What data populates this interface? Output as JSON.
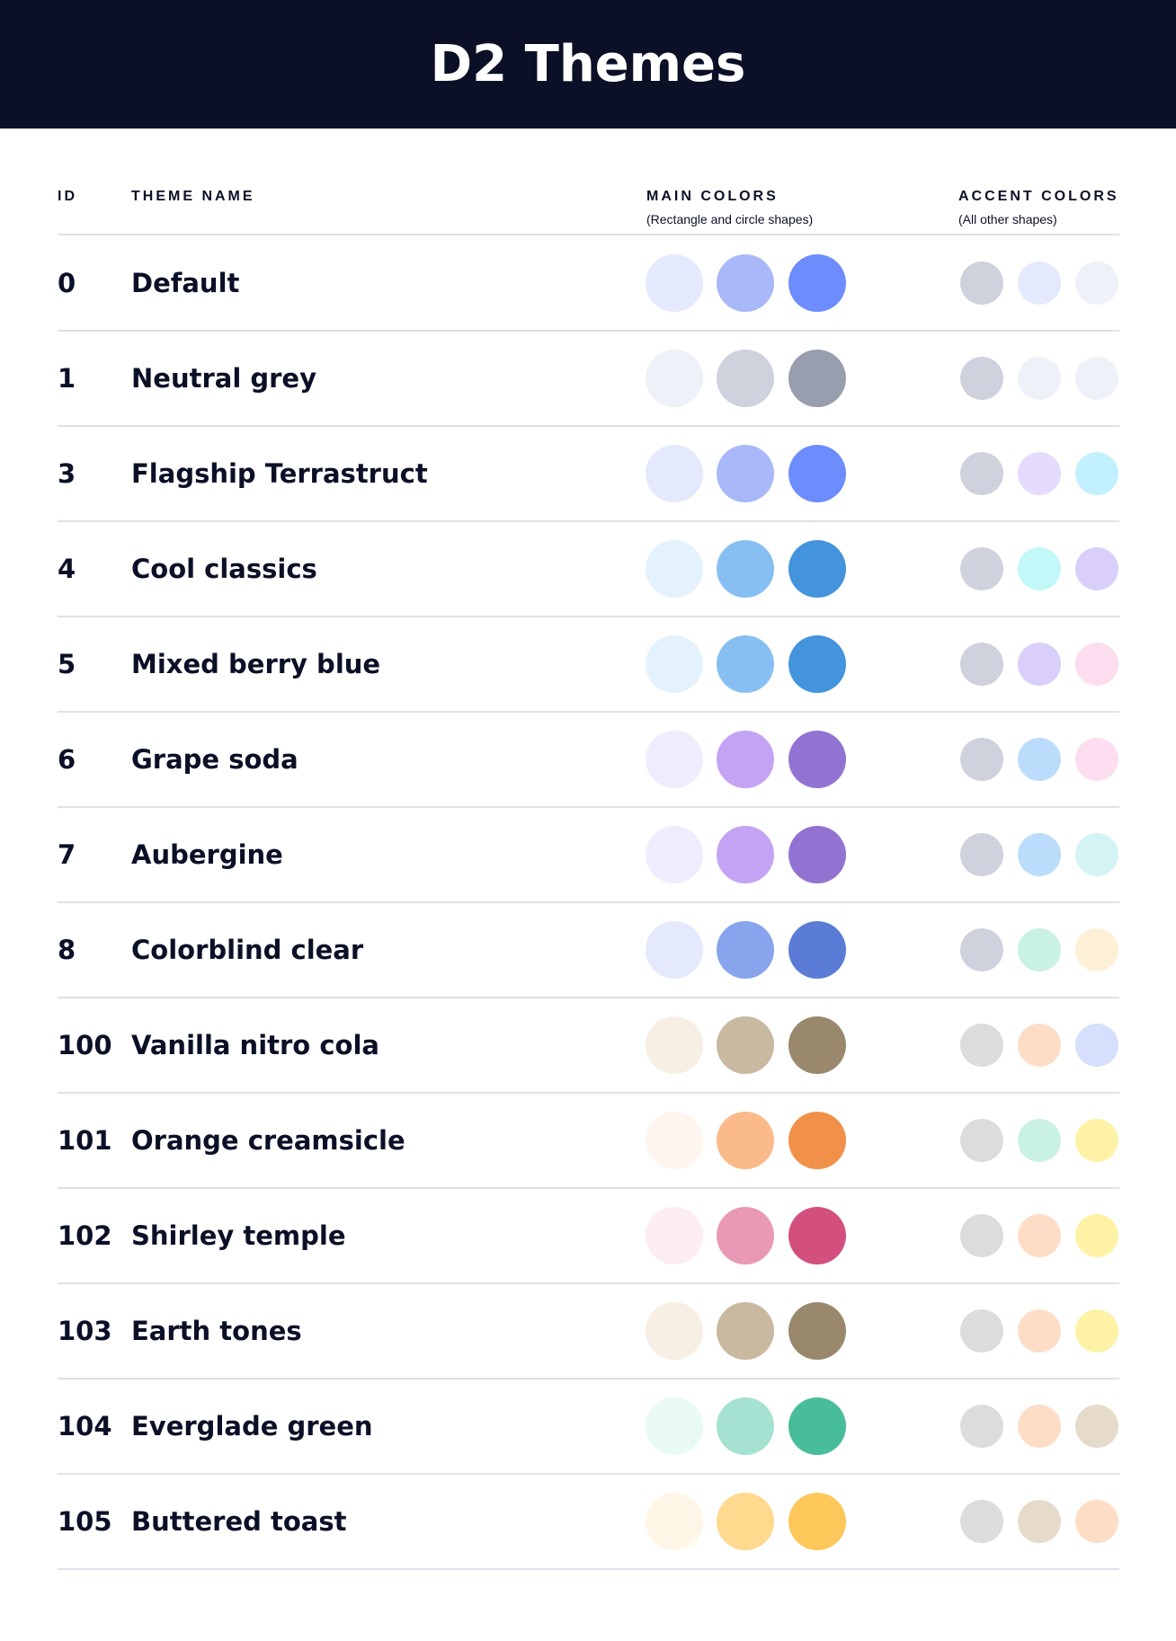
{
  "title": "D2 Themes",
  "columns": {
    "id": "ID",
    "name": "THEME NAME",
    "main": "MAIN COLORS",
    "main_sub": "(Rectangle and circle shapes)",
    "accent": "ACCENT COLORS",
    "accent_sub": "(All other shapes)"
  },
  "themes": [
    {
      "id": "0",
      "name": "Default",
      "main": [
        "#E5E9FD",
        "#A9B8F8",
        "#6D8CFD"
      ],
      "accent": [
        "#CFD2DD",
        "#E5E9FD",
        "#EEF1F8"
      ]
    },
    {
      "id": "1",
      "name": "Neutral grey",
      "main": [
        "#EEF1F8",
        "#CFD2DD",
        "#989EAD"
      ],
      "accent": [
        "#CFD2DD",
        "#EEF1F8",
        "#EEF1F8"
      ]
    },
    {
      "id": "3",
      "name": "Flagship Terrastruct",
      "main": [
        "#E5E9FD",
        "#A9B8F8",
        "#6D8CFD"
      ],
      "accent": [
        "#CFD2DD",
        "#E5DBFE",
        "#C2F0FE"
      ]
    },
    {
      "id": "4",
      "name": "Cool classics",
      "main": [
        "#E3F2FD",
        "#88BFF3",
        "#4393DD"
      ],
      "accent": [
        "#CFD2DD",
        "#C2F8F8",
        "#D9CFFA"
      ]
    },
    {
      "id": "5",
      "name": "Mixed berry blue",
      "main": [
        "#E3F2FD",
        "#88BFF3",
        "#4393DD"
      ],
      "accent": [
        "#CFD2DD",
        "#D9CFFA",
        "#FDDDF0"
      ]
    },
    {
      "id": "6",
      "name": "Grape soda",
      "main": [
        "#F0ECFE",
        "#C4A3F4",
        "#9373D1"
      ],
      "accent": [
        "#CFD2DD",
        "#BBDCFB",
        "#FDDDF0"
      ]
    },
    {
      "id": "7",
      "name": "Aubergine",
      "main": [
        "#F0ECFE",
        "#C4A3F4",
        "#9373D1"
      ],
      "accent": [
        "#CFD2DD",
        "#BBDCFB",
        "#D4F4F3"
      ]
    },
    {
      "id": "8",
      "name": "Colorblind clear",
      "main": [
        "#E5E9FD",
        "#87A4EC",
        "#5A7CD6"
      ],
      "accent": [
        "#CFD2DD",
        "#C9F1E5",
        "#FEF0D6"
      ]
    },
    {
      "id": "100",
      "name": "Vanilla nitro cola",
      "main": [
        "#F7EEE4",
        "#C9B9A0",
        "#9A886C"
      ],
      "accent": [
        "#DCDCDC",
        "#FEDDC6",
        "#D6E0FC"
      ]
    },
    {
      "id": "101",
      "name": "Orange creamsicle",
      "main": [
        "#FFF5EF",
        "#FBBA89",
        "#F19049"
      ],
      "accent": [
        "#DCDCDC",
        "#C9F1E5",
        "#FEF2A6"
      ]
    },
    {
      "id": "102",
      "name": "Shirley temple",
      "main": [
        "#FCEDF2",
        "#E999B5",
        "#D34F7E"
      ],
      "accent": [
        "#DCDCDC",
        "#FEDDC6",
        "#FEF2A6"
      ]
    },
    {
      "id": "103",
      "name": "Earth tones",
      "main": [
        "#F7EEE4",
        "#C9B9A0",
        "#9A886C"
      ],
      "accent": [
        "#DCDCDC",
        "#FEDDC6",
        "#FEF2A6"
      ]
    },
    {
      "id": "104",
      "name": "Everglade green",
      "main": [
        "#E8FAF3",
        "#A5E2D1",
        "#48BD9A"
      ],
      "accent": [
        "#DCDCDC",
        "#FEDDC6",
        "#E6DBCB"
      ]
    },
    {
      "id": "105",
      "name": "Buttered toast",
      "main": [
        "#FFF6E8",
        "#FED98E",
        "#FDC75A"
      ],
      "accent": [
        "#DCDCDC",
        "#E6DBCB",
        "#FEDDC6"
      ]
    }
  ]
}
